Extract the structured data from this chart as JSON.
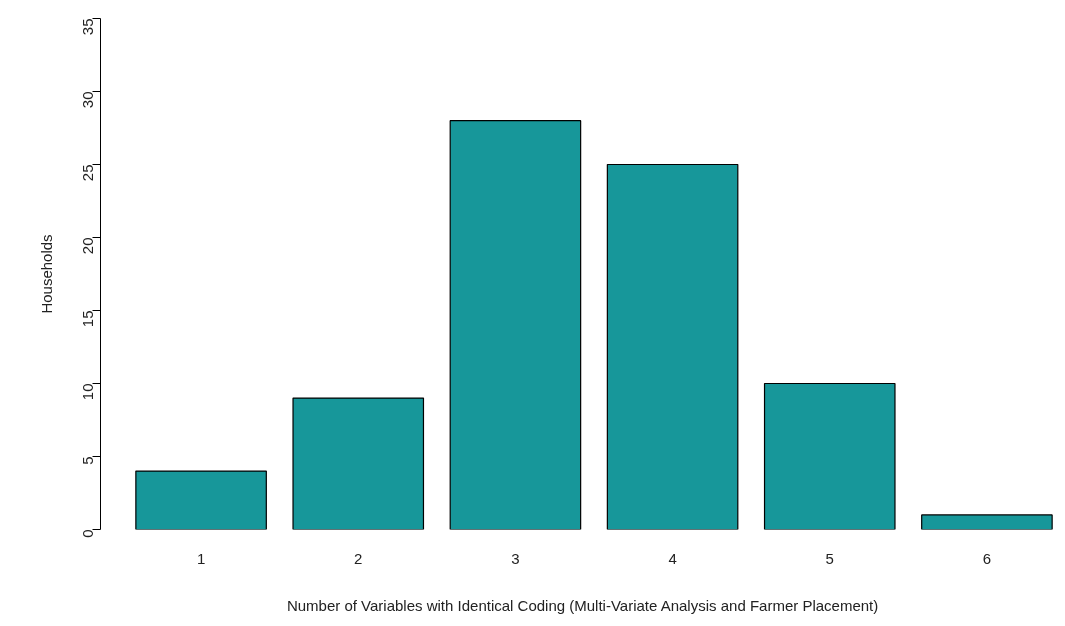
{
  "chart_data": {
    "type": "bar",
    "xlabel": "Number of Variables with Identical Coding (Multi-Variate Analysis and Farmer Placement)",
    "ylabel": "Households",
    "categories": [
      "1",
      "2",
      "3",
      "4",
      "5",
      "6"
    ],
    "values": [
      4,
      9,
      28,
      25,
      10,
      1
    ],
    "color": "#17979a",
    "ylim": [
      0,
      35
    ],
    "yticks": [
      0,
      5,
      10,
      15,
      20,
      25,
      30,
      35
    ],
    "grid": false
  }
}
